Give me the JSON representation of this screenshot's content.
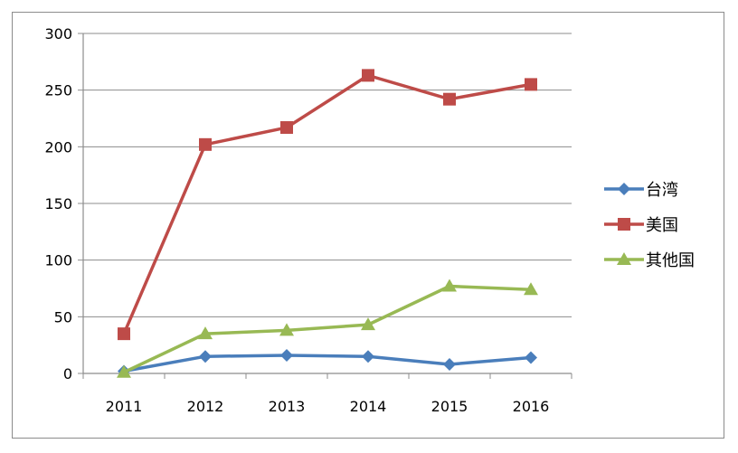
{
  "chart_data": {
    "type": "line",
    "title": "",
    "xlabel": "",
    "ylabel": "",
    "categories": [
      "2011",
      "2012",
      "2013",
      "2014",
      "2015",
      "2016"
    ],
    "ylim": [
      0,
      300
    ],
    "yticks": [
      0,
      50,
      100,
      150,
      200,
      250,
      300
    ],
    "grid": true,
    "legend_position": "right",
    "series": [
      {
        "name": "台湾",
        "values": [
          2,
          15,
          16,
          15,
          8,
          14
        ],
        "color": "#4a7ebb",
        "marker": "diamond"
      },
      {
        "name": "美国",
        "values": [
          35,
          202,
          217,
          263,
          242,
          255
        ],
        "color": "#be4b48",
        "marker": "square"
      },
      {
        "name": "其他国",
        "values": [
          1,
          35,
          38,
          43,
          77,
          74
        ],
        "color": "#98b954",
        "marker": "triangle"
      }
    ]
  }
}
